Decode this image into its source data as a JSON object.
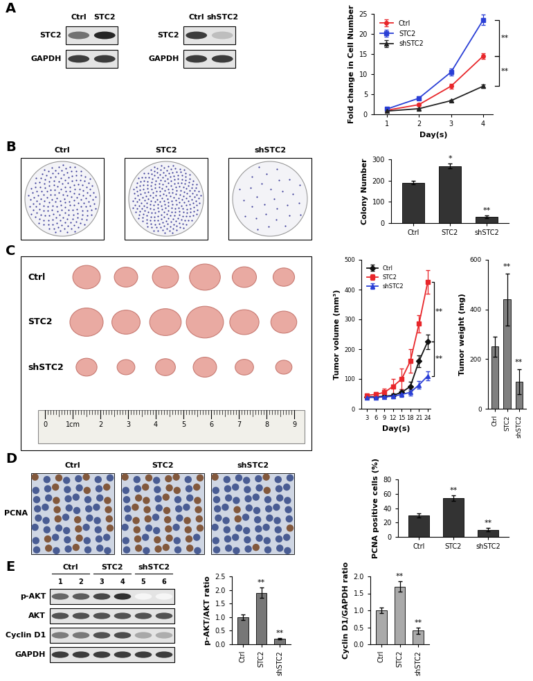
{
  "panel_labels": [
    "A",
    "B",
    "C",
    "D",
    "E"
  ],
  "blots": {
    "A_overexpression": {
      "lanes": [
        "Ctrl",
        "STC2"
      ],
      "rows": [
        "STC2",
        "GAPDH"
      ]
    },
    "A_knockdown": {
      "lanes": [
        "Ctrl",
        "shSTC2"
      ],
      "rows": [
        "STC2",
        "GAPDH"
      ]
    },
    "E": {
      "groups": [
        "Ctrl",
        "STC2",
        "shSTC2"
      ],
      "lanes": [
        "1",
        "2",
        "3",
        "4",
        "5",
        "6"
      ],
      "rows": [
        "p-AKT",
        "AKT",
        "Cyclin D1",
        "GAPDH"
      ]
    }
  },
  "colony_plates": {
    "labels": [
      "Ctrl",
      "STC2",
      "shSTC2"
    ]
  },
  "tumor_photo": {
    "rows": [
      "Ctrl",
      "STC2",
      "shSTC2"
    ],
    "ruler_labels": [
      "0",
      "1cm",
      "2",
      "3",
      "4",
      "5",
      "6",
      "7",
      "8",
      "9"
    ]
  },
  "ihc": {
    "stain": "PCNA",
    "labels": [
      "Ctrl",
      "STC2",
      "shSTC2"
    ]
  },
  "chart_data": [
    {
      "type": "line",
      "x_label": "Day(s)",
      "y_label": "Fold change in Cell Number",
      "x": [
        1,
        2,
        3,
        4
      ],
      "xlim": [
        0.6,
        4.3
      ],
      "xticks": [
        1,
        2,
        3,
        4
      ],
      "ylim": [
        0,
        25
      ],
      "yticks": [
        0,
        5,
        10,
        15,
        20,
        25
      ],
      "legend": "upper left",
      "series": [
        {
          "name": "Ctrl",
          "color": "#e8262a",
          "marker": "circle",
          "values": [
            1.0,
            2.4,
            7.0,
            14.5
          ],
          "errors": [
            0.2,
            0.3,
            0.6,
            0.7
          ]
        },
        {
          "name": "STC2",
          "color": "#2a3fd6",
          "marker": "square",
          "values": [
            1.3,
            4.0,
            10.5,
            23.5
          ],
          "errors": [
            0.2,
            0.4,
            0.9,
            1.3
          ]
        },
        {
          "name": "shSTC2",
          "color": "#222222",
          "marker": "triangle",
          "values": [
            0.8,
            1.4,
            3.4,
            7.0
          ],
          "errors": [
            0.1,
            0.2,
            0.3,
            0.5
          ]
        }
      ],
      "brackets": [
        {
          "series": [
            "STC2",
            "Ctrl"
          ],
          "text": "**"
        },
        {
          "series": [
            "Ctrl",
            "shSTC2"
          ],
          "text": "**"
        }
      ]
    },
    {
      "type": "bar",
      "y_label": "Colony Number",
      "categories": [
        "Ctrl",
        "STC2",
        "shSTC2"
      ],
      "values": [
        190,
        268,
        30
      ],
      "errors": [
        8,
        12,
        6
      ],
      "significance": [
        null,
        "*",
        "**"
      ],
      "color": "#333333",
      "ylim": [
        0,
        300
      ],
      "yticks": [
        0,
        100,
        200,
        300
      ]
    },
    {
      "type": "line",
      "x_label": "Day(s)",
      "y_label": "Tumor volume (mm³)",
      "x": [
        3,
        6,
        9,
        12,
        15,
        18,
        21,
        24
      ],
      "xlim": [
        1,
        25
      ],
      "xticks": [
        3,
        6,
        9,
        12,
        15,
        18,
        21,
        24
      ],
      "ylim": [
        0,
        500
      ],
      "yticks": [
        0,
        100,
        200,
        300,
        400,
        500
      ],
      "legend": "upper left",
      "series": [
        {
          "name": "Ctrl",
          "color": "#111111",
          "marker": "diamond",
          "values": [
            40,
            40,
            42,
            45,
            55,
            75,
            160,
            225
          ],
          "errors": [
            5,
            5,
            6,
            7,
            10,
            15,
            20,
            25
          ]
        },
        {
          "name": "STC2",
          "color": "#e8262a",
          "marker": "square",
          "values": [
            45,
            48,
            55,
            75,
            100,
            160,
            285,
            425
          ],
          "errors": [
            6,
            8,
            12,
            25,
            35,
            40,
            30,
            40
          ]
        },
        {
          "name": "shSTC2",
          "color": "#2a3fd6",
          "marker": "triangle",
          "values": [
            38,
            38,
            40,
            42,
            48,
            55,
            80,
            110
          ],
          "errors": [
            5,
            5,
            6,
            7,
            8,
            10,
            12,
            15
          ]
        }
      ],
      "brackets": [
        {
          "series": [
            "STC2",
            "Ctrl"
          ],
          "text": "**"
        },
        {
          "series": [
            "Ctrl",
            "shSTC2"
          ],
          "text": "**"
        }
      ]
    },
    {
      "type": "bar",
      "y_label": "Tumor weight (mg)",
      "categories": [
        "Ctrl",
        "STC2",
        "shSTC2"
      ],
      "values": [
        250,
        440,
        110
      ],
      "errors": [
        40,
        105,
        50
      ],
      "significance": [
        null,
        "**",
        "**"
      ],
      "color": "#808080",
      "ylim": [
        0,
        600
      ],
      "yticks": [
        0,
        200,
        400,
        600
      ]
    },
    {
      "type": "bar",
      "y_label": "PCNA positive cells (%)",
      "categories": [
        "Ctrl",
        "STC2",
        "shSTC2"
      ],
      "values": [
        30,
        54,
        10
      ],
      "errors": [
        3,
        4,
        2.5
      ],
      "significance": [
        null,
        "**",
        "**"
      ],
      "color": "#333333",
      "ylim": [
        0,
        80
      ],
      "yticks": [
        0,
        20,
        40,
        60,
        80
      ]
    },
    {
      "type": "bar",
      "y_label": "p-AKT/AKT ratio",
      "categories": [
        "Ctrl",
        "STC2",
        "shSTC2"
      ],
      "values": [
        1.0,
        1.9,
        0.2
      ],
      "errors": [
        0.1,
        0.2,
        0.03
      ],
      "significance": [
        null,
        "**",
        "**"
      ],
      "color": "#777777",
      "ylim": [
        0,
        2.5
      ],
      "yticks": [
        {
          "value": 0,
          "label": "0.0"
        },
        0.5,
        {
          "value": 1,
          "label": "1.0"
        },
        1.5,
        {
          "value": 2,
          "label": "2.0"
        },
        2.5
      ]
    },
    {
      "type": "bar",
      "y_label": "Cyclin D1/GAPDH ratio",
      "categories": [
        "Ctrl",
        "STC2",
        "shSTC2"
      ],
      "values": [
        1.0,
        1.7,
        0.4
      ],
      "errors": [
        0.08,
        0.15,
        0.1
      ],
      "significance": [
        null,
        "**",
        "**"
      ],
      "color": "#aaaaaa",
      "ylim": [
        0,
        2.0
      ],
      "yticks": [
        {
          "value": 0,
          "label": "0.0"
        },
        0.5,
        {
          "value": 1,
          "label": "1.0"
        },
        1.5,
        {
          "value": 2,
          "label": "2.0"
        }
      ]
    }
  ]
}
